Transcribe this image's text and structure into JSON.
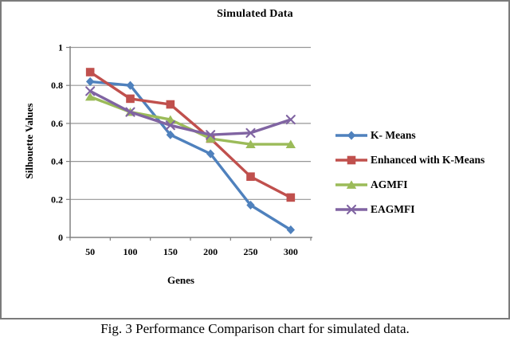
{
  "figure": {
    "caption": "Fig. 3 Performance Comparison chart for simulated data."
  },
  "chart_data": {
    "type": "line",
    "title": "Simulated Data",
    "xlabel": "Genes",
    "ylabel": "Silhouette Values",
    "categories": [
      "50",
      "100",
      "150",
      "200",
      "250",
      "300"
    ],
    "ylim": [
      0,
      1
    ],
    "ytick_step": 0.2,
    "ytick_labels": [
      "0",
      "0.2",
      "0.4",
      "0.6",
      "0.8",
      "1"
    ],
    "grid": true,
    "legend_position": "right",
    "axis_color": "#808080",
    "grid_color": "#969696",
    "series": [
      {
        "name": "K- Means",
        "color": "#4F81BD",
        "marker": "diamond",
        "values": [
          0.82,
          0.8,
          0.54,
          0.44,
          0.17,
          0.04
        ]
      },
      {
        "name": "Enhanced with K-Means",
        "color": "#C0504D",
        "marker": "square",
        "values": [
          0.87,
          0.73,
          0.7,
          0.52,
          0.32,
          0.21
        ]
      },
      {
        "name": "AGMFI",
        "color": "#9BBB59",
        "marker": "triangle",
        "values": [
          0.74,
          0.66,
          0.62,
          0.52,
          0.49,
          0.49
        ]
      },
      {
        "name": "EAGMFI",
        "color": "#8064A2",
        "marker": "x",
        "values": [
          0.77,
          0.66,
          0.59,
          0.54,
          0.55,
          0.62
        ]
      }
    ]
  }
}
